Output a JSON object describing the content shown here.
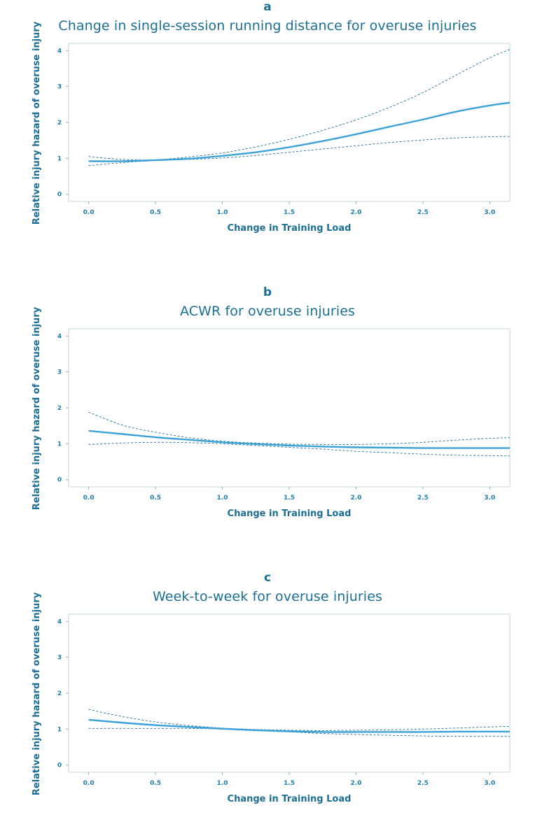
{
  "colors": {
    "accent": "#1b6f96",
    "curve": "#3aa2d8",
    "frame": "#c6d8e2"
  },
  "chart_data": [
    {
      "type": "line",
      "panel_letter": "a",
      "title": "Change in single-session running distance for overuse injuries",
      "xlabel": "Change in Training Load",
      "ylabel": "Relative injury hazard of overuse injury",
      "xlim": [
        -0.15,
        3.15
      ],
      "ylim": [
        -0.2,
        4.2
      ],
      "x_ticks": [
        "0.0",
        "0.5",
        "1.0",
        "1.5",
        "2.0",
        "2.5",
        "3.0"
      ],
      "y_ticks": [
        "0",
        "1",
        "2",
        "3",
        "4"
      ],
      "grid": false,
      "series": [
        {
          "role": "estimate",
          "x": [
            0.0,
            0.25,
            0.5,
            0.75,
            1.0,
            1.25,
            1.5,
            1.75,
            2.0,
            2.25,
            2.5,
            2.75,
            3.0,
            3.15
          ],
          "y": [
            0.92,
            0.92,
            0.95,
            0.99,
            1.07,
            1.17,
            1.31,
            1.48,
            1.67,
            1.88,
            2.08,
            2.3,
            2.47,
            2.55
          ]
        },
        {
          "role": "ci-upper",
          "x": [
            0.0,
            0.25,
            0.5,
            0.75,
            1.0,
            1.25,
            1.5,
            1.75,
            2.0,
            2.25,
            2.5,
            2.75,
            3.0,
            3.15
          ],
          "y": [
            1.05,
            0.97,
            0.96,
            1.04,
            1.15,
            1.32,
            1.53,
            1.78,
            2.07,
            2.42,
            2.83,
            3.32,
            3.8,
            4.03
          ]
        },
        {
          "role": "ci-lower",
          "x": [
            0.0,
            0.25,
            0.5,
            0.75,
            1.0,
            1.25,
            1.5,
            1.75,
            2.0,
            2.25,
            2.5,
            2.75,
            3.0,
            3.15
          ],
          "y": [
            0.8,
            0.88,
            0.94,
            0.97,
            1.01,
            1.08,
            1.17,
            1.26,
            1.35,
            1.44,
            1.51,
            1.57,
            1.6,
            1.61
          ]
        }
      ]
    },
    {
      "type": "line",
      "panel_letter": "b",
      "title": "ACWR for overuse injuries",
      "xlabel": "Change in Training Load",
      "ylabel": "Relative injury hazard of overuse injury",
      "xlim": [
        -0.15,
        3.15
      ],
      "ylim": [
        -0.2,
        4.2
      ],
      "x_ticks": [
        "0.0",
        "0.5",
        "1.0",
        "1.5",
        "2.0",
        "2.5",
        "3.0"
      ],
      "y_ticks": [
        "0",
        "1",
        "2",
        "3",
        "4"
      ],
      "grid": false,
      "series": [
        {
          "role": "estimate",
          "x": [
            0.0,
            0.25,
            0.5,
            0.75,
            1.0,
            1.25,
            1.5,
            1.75,
            2.0,
            2.25,
            2.5,
            2.75,
            3.0,
            3.15
          ],
          "y": [
            1.36,
            1.27,
            1.18,
            1.11,
            1.04,
            0.99,
            0.95,
            0.92,
            0.9,
            0.89,
            0.88,
            0.88,
            0.88,
            0.88
          ]
        },
        {
          "role": "ci-upper",
          "x": [
            0.0,
            0.25,
            0.5,
            0.75,
            1.0,
            1.25,
            1.5,
            1.75,
            2.0,
            2.25,
            2.5,
            2.75,
            3.0,
            3.15
          ],
          "y": [
            1.88,
            1.52,
            1.32,
            1.17,
            1.07,
            1.02,
            0.99,
            0.98,
            0.98,
            1.0,
            1.04,
            1.1,
            1.15,
            1.17
          ]
        },
        {
          "role": "ci-lower",
          "x": [
            0.0,
            0.25,
            0.5,
            0.75,
            1.0,
            1.25,
            1.5,
            1.75,
            2.0,
            2.25,
            2.5,
            2.75,
            3.0,
            3.15
          ],
          "y": [
            0.98,
            1.02,
            1.04,
            1.03,
            1.0,
            0.95,
            0.9,
            0.85,
            0.79,
            0.75,
            0.71,
            0.68,
            0.67,
            0.66
          ]
        }
      ]
    },
    {
      "type": "line",
      "panel_letter": "c",
      "title": "Week-to-week for overuse injuries",
      "xlabel": "Change in Training Load",
      "ylabel": "Relative injury hazard of overuse injury",
      "xlim": [
        -0.15,
        3.15
      ],
      "ylim": [
        -0.2,
        4.2
      ],
      "x_ticks": [
        "0.0",
        "0.5",
        "1.0",
        "1.5",
        "2.0",
        "2.5",
        "3.0"
      ],
      "y_ticks": [
        "0",
        "1",
        "2",
        "3",
        "4"
      ],
      "grid": false,
      "series": [
        {
          "role": "estimate",
          "x": [
            0.0,
            0.25,
            0.5,
            0.75,
            1.0,
            1.25,
            1.5,
            1.75,
            2.0,
            2.25,
            2.5,
            2.75,
            3.0,
            3.15
          ],
          "y": [
            1.26,
            1.18,
            1.11,
            1.06,
            1.01,
            0.97,
            0.94,
            0.92,
            0.92,
            0.92,
            0.92,
            0.93,
            0.93,
            0.93
          ]
        },
        {
          "role": "ci-upper",
          "x": [
            0.0,
            0.25,
            0.5,
            0.75,
            1.0,
            1.25,
            1.5,
            1.75,
            2.0,
            2.25,
            2.5,
            2.75,
            3.0,
            3.15
          ],
          "y": [
            1.55,
            1.35,
            1.2,
            1.1,
            1.03,
            0.99,
            0.97,
            0.96,
            0.97,
            0.98,
            1.0,
            1.03,
            1.06,
            1.08
          ]
        },
        {
          "role": "ci-lower",
          "x": [
            0.0,
            0.25,
            0.5,
            0.75,
            1.0,
            1.25,
            1.5,
            1.75,
            2.0,
            2.25,
            2.5,
            2.75,
            3.0,
            3.15
          ],
          "y": [
            1.02,
            1.02,
            1.02,
            1.02,
            1.0,
            0.96,
            0.92,
            0.88,
            0.85,
            0.83,
            0.81,
            0.8,
            0.8,
            0.8
          ]
        }
      ]
    }
  ]
}
